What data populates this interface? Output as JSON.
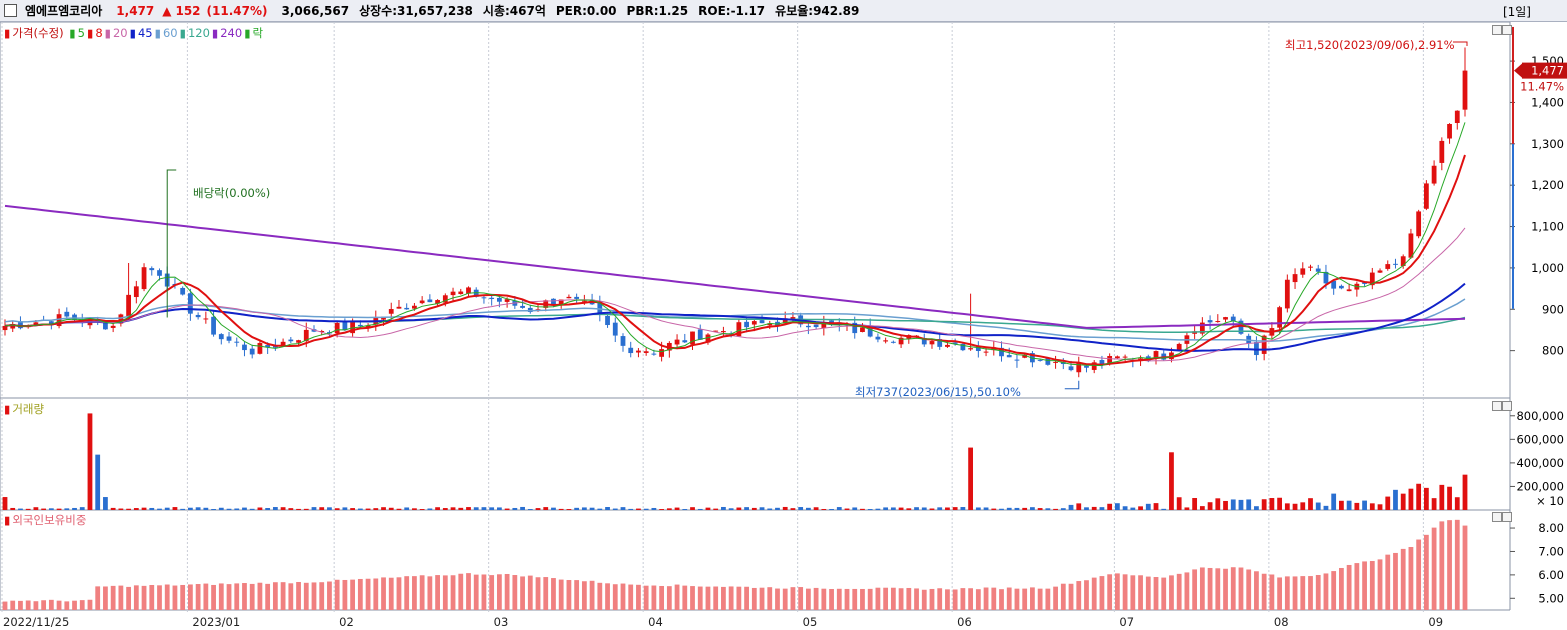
{
  "header": {
    "checkbox": "",
    "stock_name": "엠에프엠코리아",
    "price": "1,477",
    "change_arrow": "▲",
    "change": "152",
    "change_pct": "(11.47%)",
    "volume": "3,066,567",
    "listed_shares": "상장수:31,657,238",
    "market_cap": "시총:467억",
    "per": "PER:0.00",
    "pbr": "PBR:1.25",
    "roe": "ROE:-1.17",
    "reserve_ratio": "유보율:942.89",
    "period_button": "[1일]"
  },
  "colors": {
    "up": "#e01010",
    "down": "#2a6fd0",
    "ma5": "#27a827",
    "ma20": "#c866a8",
    "ma45": "#1022c8",
    "ma60": "#6a9fd0",
    "ma120": "#3aa890",
    "ma240": "#8a2ac0",
    "foreign": "#f08080"
  },
  "price_legend": {
    "label": "가격(수정)",
    "items": [
      {
        "label": "5",
        "color": "#27a827"
      },
      {
        "label": "8",
        "color": "#e01010"
      },
      {
        "label": "20",
        "color": "#c866a8"
      },
      {
        "label": "45",
        "color": "#1022c8"
      },
      {
        "label": "60",
        "color": "#6a9fd0"
      },
      {
        "label": "120",
        "color": "#3aa890"
      },
      {
        "label": "240",
        "color": "#8a2ac0"
      },
      {
        "label": "락",
        "color": "#27a827"
      }
    ]
  },
  "volume_legend": "거래량",
  "foreign_legend": "외국인보유비중",
  "annotations": {
    "dividend": "배당락(0.00%)",
    "high": "최고1,520(2023/09/06),2.91%",
    "low": "최저737(2023/06/15),50.10%",
    "current_price": "1,477",
    "current_pct": "11.47%"
  },
  "price_axis": {
    "ticks": [
      "1,500",
      "1,400",
      "1,300",
      "1,200",
      "1,100",
      "1,000",
      "900",
      "800"
    ]
  },
  "volume_axis": {
    "ticks": [
      "800,000",
      "600,000",
      "400,000",
      "200,000"
    ],
    "unit": "× 10"
  },
  "foreign_axis": {
    "ticks": [
      "8.00",
      "7.00",
      "6.00",
      "5.00"
    ]
  },
  "x_axis": {
    "labels": [
      "2022/11/25",
      "2023/01",
      "02",
      "03",
      "04",
      "05",
      "06",
      "07",
      "08",
      "09"
    ]
  },
  "chart_data": {
    "type": "candlestick",
    "price_range": [
      700,
      1580
    ],
    "volume_range": [
      0,
      900000
    ],
    "foreign_range": [
      4.5,
      8.6
    ],
    "high": 1520,
    "low": 737,
    "close": 1477
  }
}
